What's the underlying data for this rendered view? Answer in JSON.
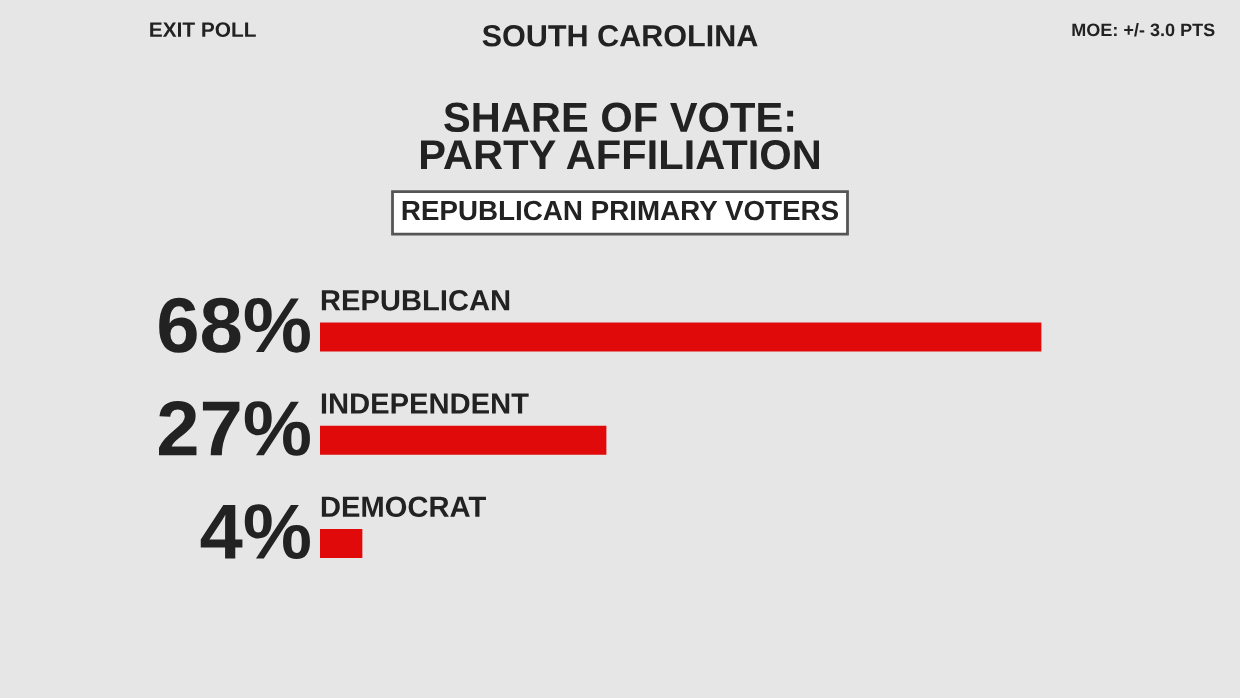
{
  "chart_data": {
    "type": "bar",
    "orientation": "horizontal",
    "title": "SHARE OF VOTE:\nPARTY AFFILIATION",
    "subtitle": "REPUBLICAN PRIMARY VOTERS",
    "categories": [
      "REPUBLICAN",
      "INDEPENDENT",
      "DEMOCRAT"
    ],
    "values": [
      68,
      27,
      4
    ],
    "value_labels": [
      "68%",
      "27%",
      "4%"
    ],
    "color": "#e00a0a",
    "annotations": [
      "EXIT POLL",
      "SOUTH CAROLINA",
      "MOE: +/- 3.0 PTS"
    ]
  }
}
